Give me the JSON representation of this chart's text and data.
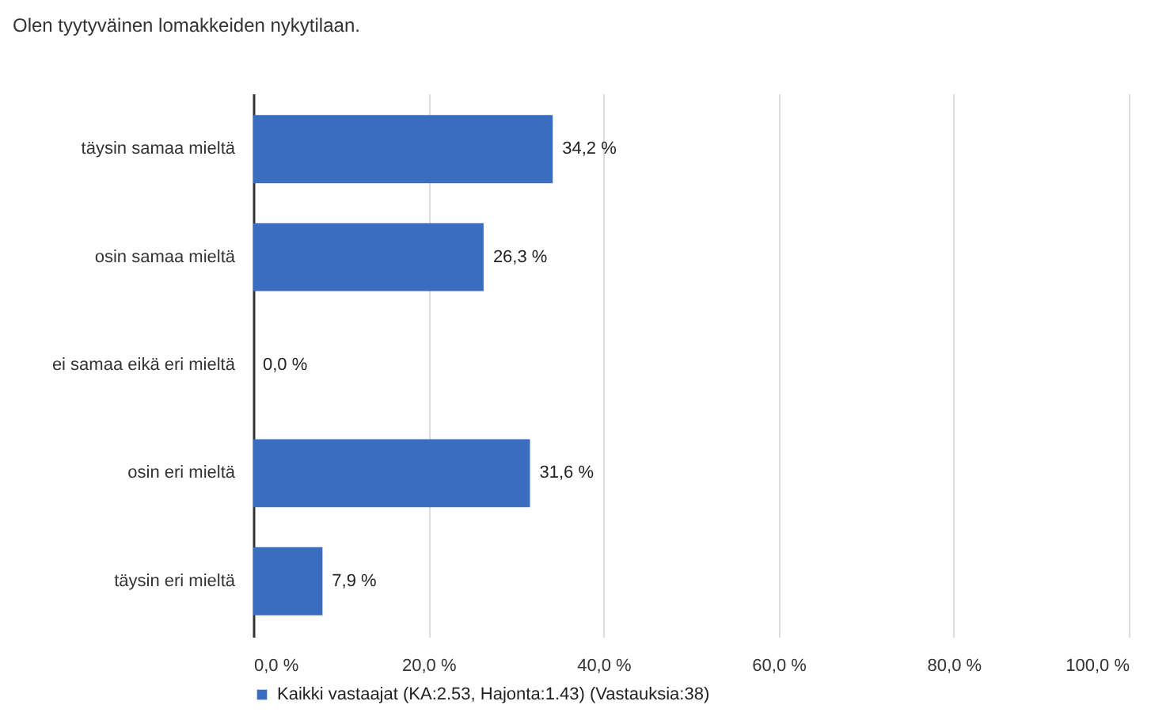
{
  "chart_data": {
    "type": "bar",
    "orientation": "horizontal",
    "title": "Olen tyytyväinen lomakkeiden nykytilaan.",
    "categories": [
      "täysin samaa mieltä",
      "osin samaa mieltä",
      "ei samaa eikä eri mieltä",
      "osin eri mieltä",
      "täysin eri mieltä"
    ],
    "series": [
      {
        "name": "Kaikki vastaajat (KA:2.53, Hajonta:1.43) (Vastauksia:38)",
        "color": "#3a6cc0",
        "values": [
          34.2,
          26.3,
          0.0,
          31.6,
          7.9
        ],
        "value_labels": [
          "34,2 %",
          "26,3 %",
          "0,0 %",
          "31,6 %",
          "7,9 %"
        ]
      }
    ],
    "xlim": [
      0,
      100
    ],
    "xticks": [
      {
        "value": 0,
        "label": "0,0 %"
      },
      {
        "value": 20,
        "label": "20,0 %"
      },
      {
        "value": 40,
        "label": "40,0 %"
      },
      {
        "value": 60,
        "label": "60,0 %"
      },
      {
        "value": 80,
        "label": "80,0 %"
      },
      {
        "value": 100,
        "label": "100,0 %"
      }
    ],
    "grid": "x",
    "legend": "bottom"
  }
}
